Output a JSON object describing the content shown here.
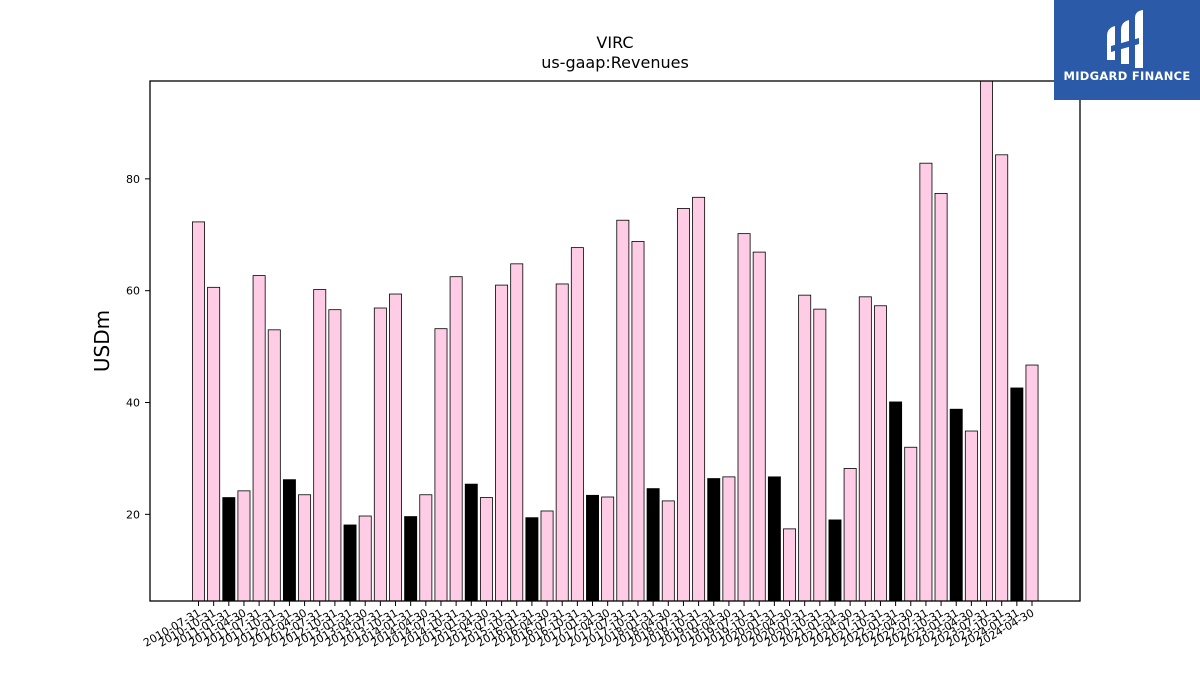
{
  "chart_data": {
    "type": "bar",
    "title": "VIRC",
    "subtitle": "us-gaap:Revenues",
    "xlabel": "",
    "ylabel": "USDm",
    "ylim": [
      4.5,
      97.5
    ],
    "yticks": [
      20,
      40,
      60,
      80
    ],
    "colors": {
      "default": "#ffcce6",
      "highlight": "#000000",
      "edge": "#000000"
    },
    "categories": [
      "2010-07-31",
      "2010-10-31",
      "2011-01-31",
      "2011-04-30",
      "2011-07-31",
      "2011-10-31",
      "2012-01-31",
      "2012-04-30",
      "2012-07-31",
      "2012-10-31",
      "2013-01-31",
      "2013-04-30",
      "2013-07-31",
      "2013-10-31",
      "2014-01-31",
      "2014-04-30",
      "2014-07-31",
      "2014-10-31",
      "2015-01-31",
      "2015-04-30",
      "2015-07-31",
      "2015-10-31",
      "2016-01-31",
      "2016-04-30",
      "2016-07-31",
      "2016-10-31",
      "2017-01-31",
      "2017-04-30",
      "2017-07-31",
      "2017-10-31",
      "2018-01-31",
      "2018-04-30",
      "2018-07-31",
      "2018-10-31",
      "2019-01-31",
      "2019-04-30",
      "2019-07-31",
      "2019-10-31",
      "2020-01-31",
      "2020-04-30",
      "2020-07-31",
      "2020-10-31",
      "2021-01-31",
      "2021-04-30",
      "2021-07-31",
      "2021-10-31",
      "2022-01-31",
      "2022-04-30",
      "2022-07-31",
      "2022-10-31",
      "2023-01-31",
      "2023-04-30",
      "2023-07-31",
      "2023-10-31",
      "2024-01-31",
      "2024-04-30"
    ],
    "values": [
      72.3,
      60.6,
      23.0,
      24.2,
      62.7,
      53.0,
      26.2,
      23.5,
      60.2,
      56.6,
      18.1,
      19.7,
      56.9,
      59.4,
      19.6,
      23.5,
      53.2,
      62.5,
      25.4,
      23.0,
      61.0,
      64.8,
      19.4,
      20.6,
      61.2,
      67.7,
      23.4,
      23.1,
      72.6,
      68.8,
      24.6,
      22.4,
      74.7,
      76.7,
      26.4,
      26.7,
      70.2,
      66.9,
      26.7,
      17.4,
      59.2,
      56.7,
      19.0,
      28.2,
      58.9,
      57.3,
      40.1,
      32.0,
      82.8,
      77.4,
      38.8,
      34.9,
      97.8,
      84.3,
      42.6,
      46.7
    ],
    "highlight": [
      false,
      false,
      true,
      false,
      false,
      false,
      true,
      false,
      false,
      false,
      true,
      false,
      false,
      false,
      true,
      false,
      false,
      false,
      true,
      false,
      false,
      false,
      true,
      false,
      false,
      false,
      true,
      false,
      false,
      false,
      true,
      false,
      false,
      false,
      true,
      false,
      false,
      false,
      true,
      false,
      false,
      false,
      true,
      false,
      false,
      false,
      true,
      false,
      false,
      false,
      true,
      false,
      false,
      false,
      true,
      false
    ]
  },
  "logo": {
    "text": "MIDGARD FINANCE",
    "icon": "midgard-logo-icon"
  }
}
